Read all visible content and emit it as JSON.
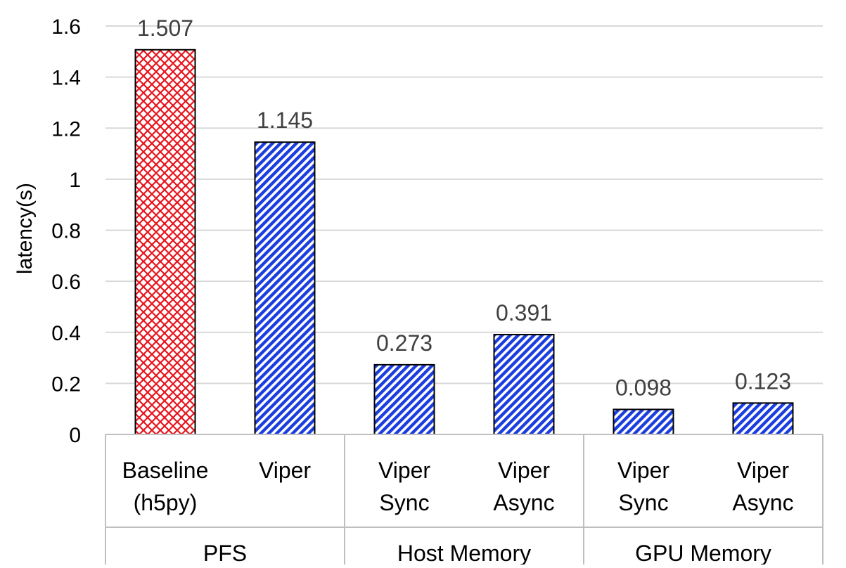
{
  "chart_data": {
    "type": "bar",
    "ylabel": "latency(s)",
    "ylim": [
      0,
      1.6
    ],
    "yticks": [
      "0",
      "0.2",
      "0.4",
      "0.6",
      "0.8",
      "1",
      "1.2",
      "1.4",
      "1.6"
    ],
    "grid": true,
    "categories": [
      {
        "label": [
          "Baseline",
          "(h5py)"
        ],
        "value": 1.507,
        "data_label": "1.507",
        "pattern": "red-crosshatch"
      },
      {
        "label": [
          "Viper"
        ],
        "value": 1.145,
        "data_label": "1.145",
        "pattern": "blue-diagonal"
      },
      {
        "label": [
          "Viper",
          "Sync"
        ],
        "value": 0.273,
        "data_label": "0.273",
        "pattern": "blue-diagonal"
      },
      {
        "label": [
          "Viper",
          "Async"
        ],
        "value": 0.391,
        "data_label": "0.391",
        "pattern": "blue-diagonal"
      },
      {
        "label": [
          "Viper",
          "Sync"
        ],
        "value": 0.098,
        "data_label": "0.098",
        "pattern": "blue-diagonal"
      },
      {
        "label": [
          "Viper",
          "Async"
        ],
        "value": 0.123,
        "data_label": "0.123",
        "pattern": "blue-diagonal"
      }
    ],
    "groups": [
      {
        "label": "PFS",
        "span": 2
      },
      {
        "label": "Host Memory",
        "span": 2
      },
      {
        "label": "GPU Memory",
        "span": 2
      }
    ]
  },
  "colors": {
    "red": "#e8141c",
    "blue": "#1a3de0",
    "grid": "#d9d9d9",
    "axis": "#bfbfbf",
    "label_text": "#404040",
    "tick_text": "#000000"
  }
}
